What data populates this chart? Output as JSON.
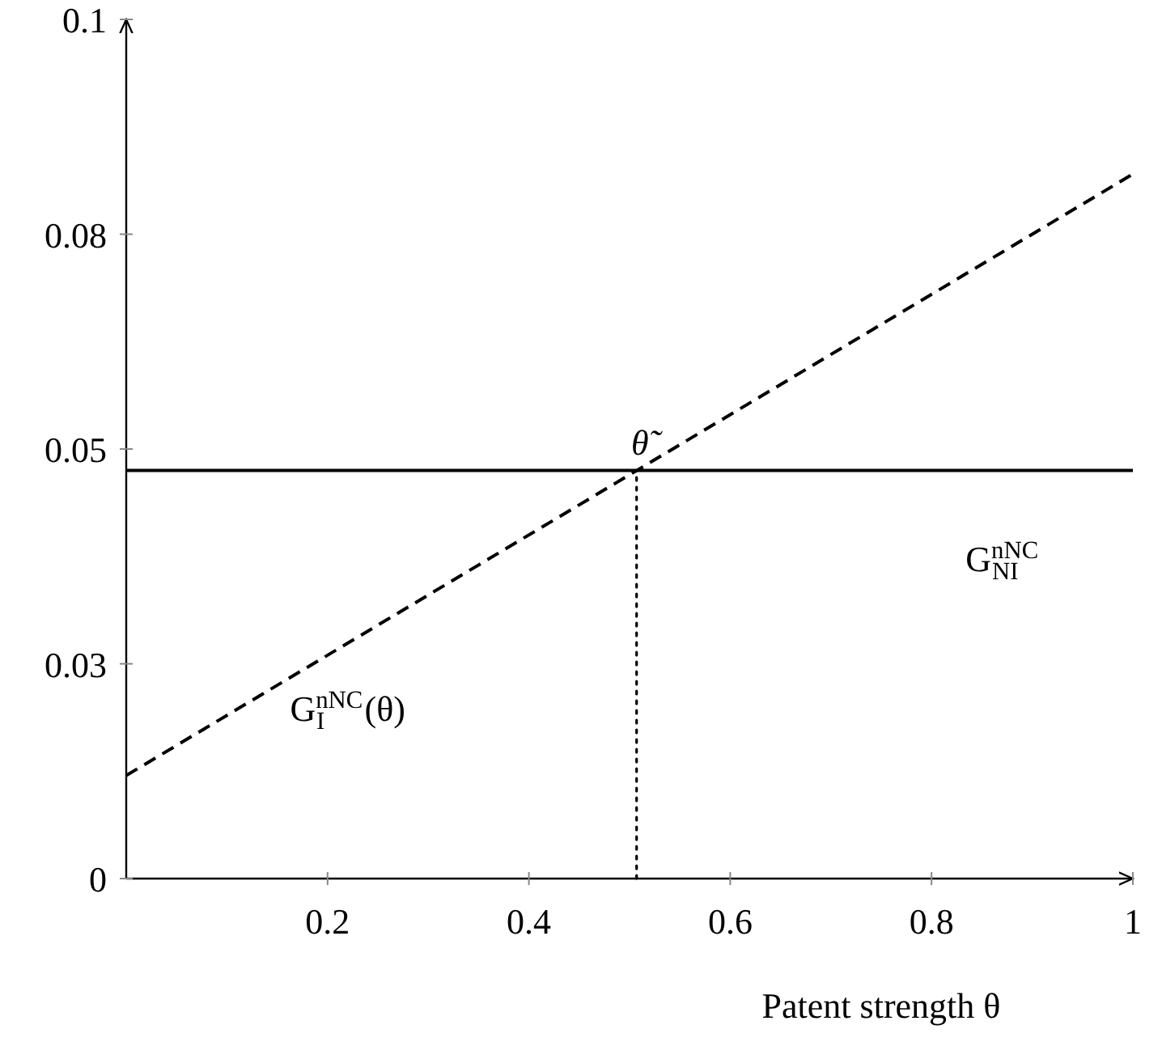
{
  "chart_data": {
    "type": "line",
    "xlabel": "Patent strength θ",
    "xlim": [
      0,
      1
    ],
    "ylim": [
      0,
      0.1
    ],
    "xticks": [
      0.2,
      0.4,
      0.6,
      0.8,
      1
    ],
    "yticks": [
      0,
      {
        "value": 0.025,
        "label": "0.03"
      },
      0.05,
      {
        "value": 0.075,
        "label": "0.08"
      },
      0.1
    ],
    "grid": false,
    "series": [
      {
        "name": "G$^{nNC}$$_{NI}$",
        "color": "#000000",
        "x": [
          0,
          1
        ],
        "values": [
          0.0475,
          0.0475
        ],
        "line_style": "solid"
      },
      {
        "name": "G$^{nNC}$$_{I}$ (θ)",
        "color": "#000000",
        "x": [
          0,
          1
        ],
        "values": [
          0.012,
          0.082
        ],
        "line_style": "dashed"
      },
      {
        "color": "#000000",
        "x": [
          0.507,
          0.507
        ],
        "values": [
          0,
          0.0475
        ],
        "line_style": "dotted"
      }
    ],
    "annotations": [
      {
        "text": "θ̃",
        "x": 0.507,
        "y": 0.0475
      }
    ]
  }
}
